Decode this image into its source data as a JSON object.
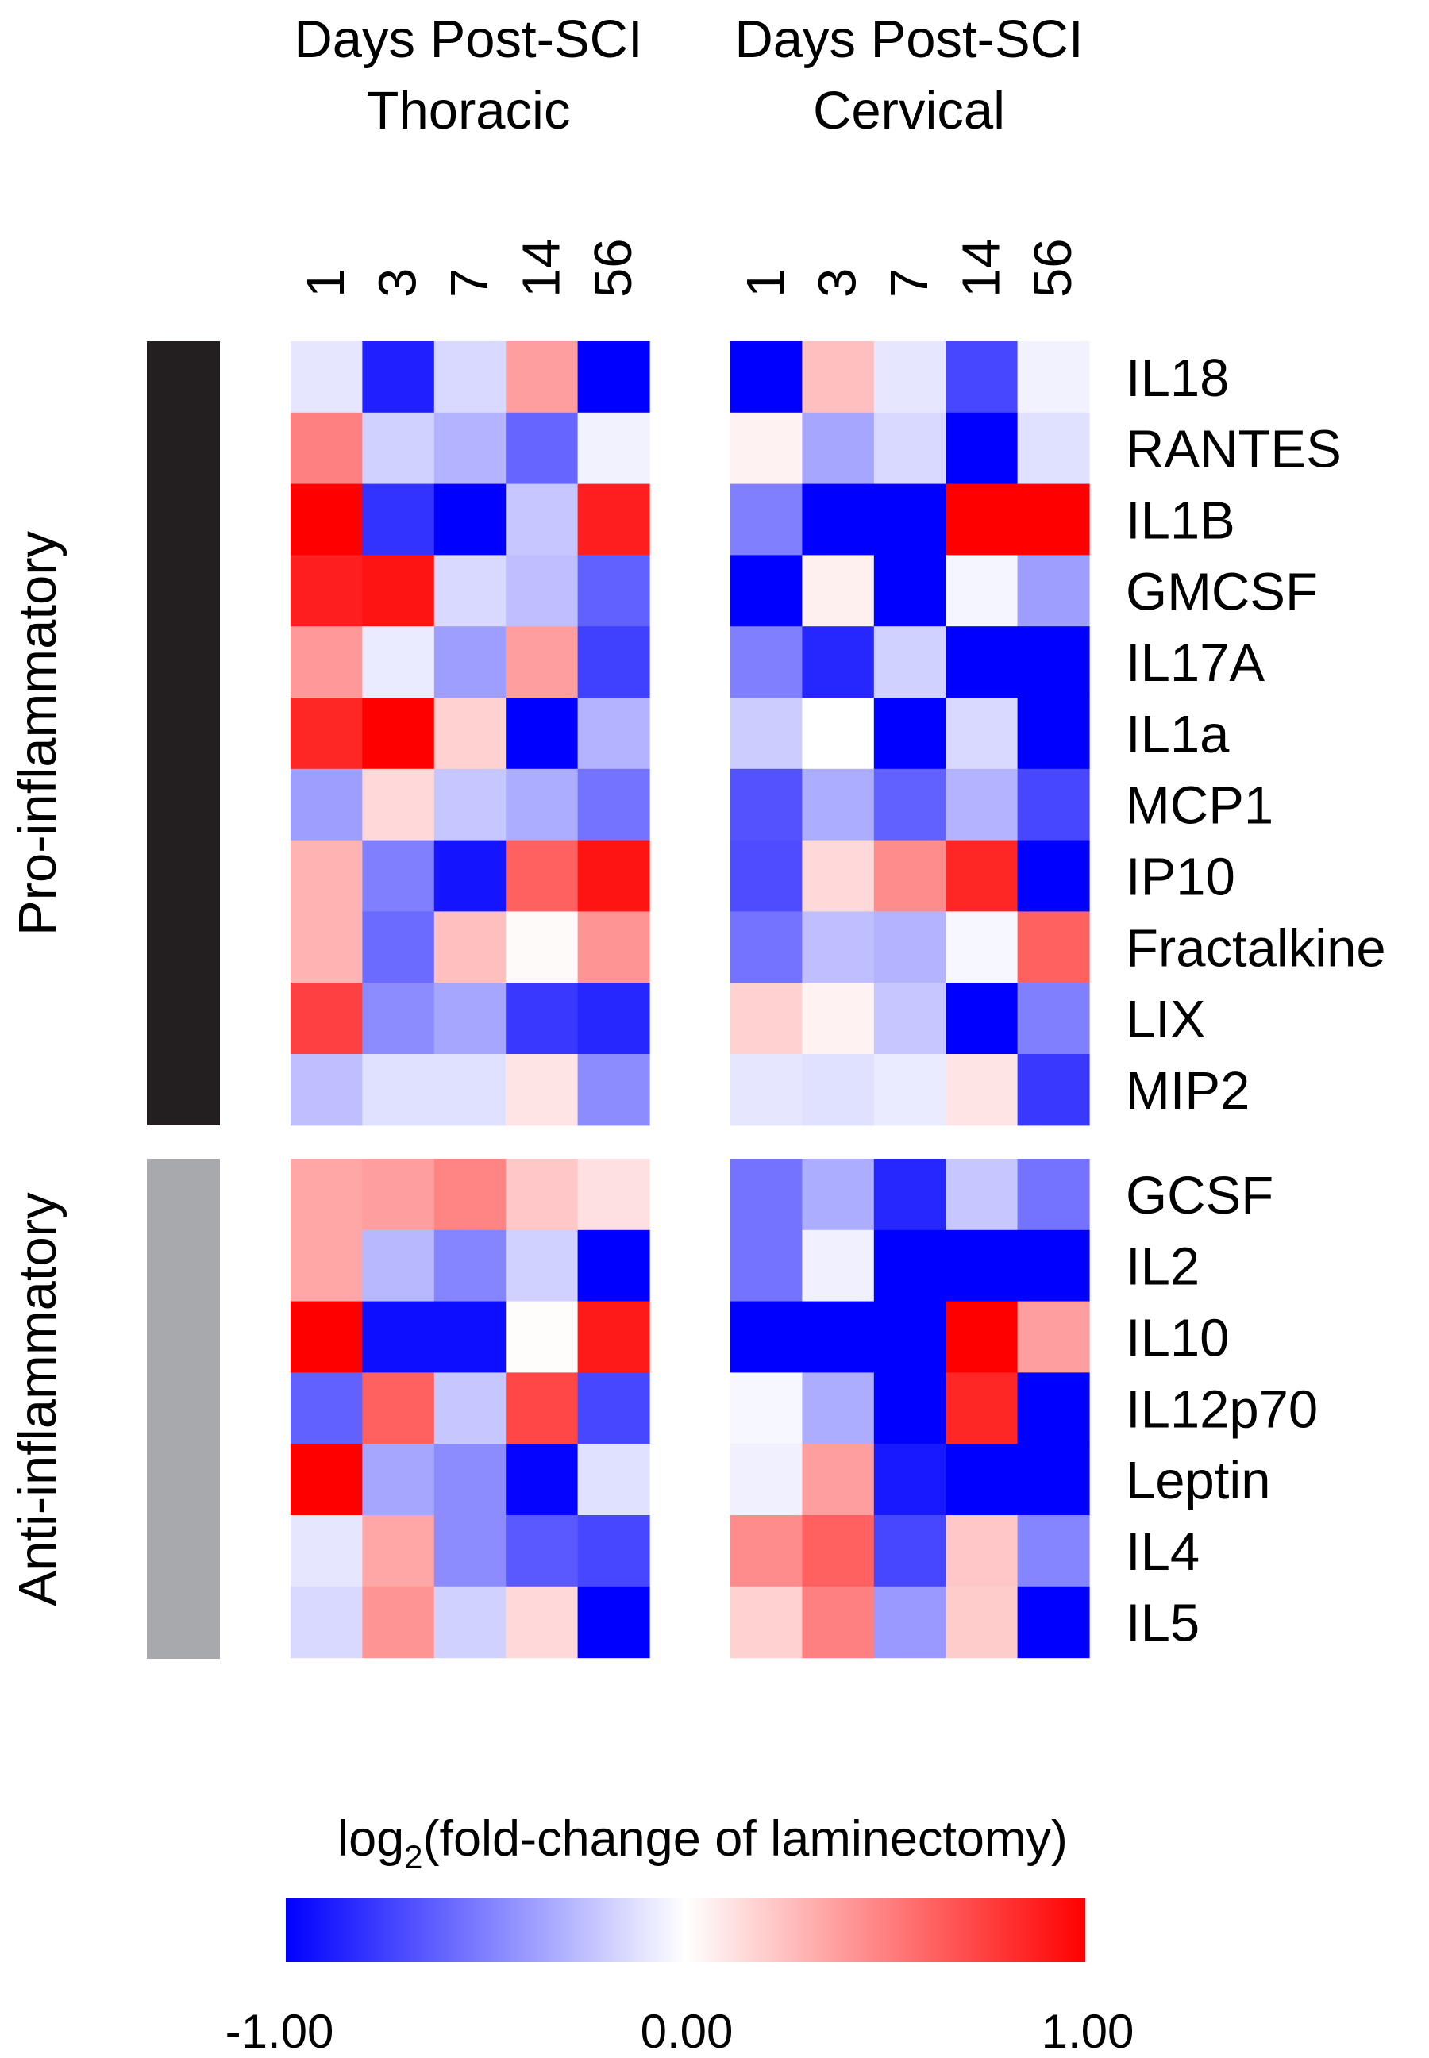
{
  "chart_data": {
    "type": "heatmap",
    "colorbar": {
      "title": "log",
      "title_subscript": "2",
      "title_rest": "(fold-change of laminectomy)",
      "min": -1.0,
      "max": 1.0,
      "ticks": [
        "-1.00",
        "0.00",
        "1.00"
      ],
      "colors": {
        "low": "#0000ff",
        "mid": "#ffffff",
        "high": "#ff0000"
      }
    },
    "columns": [
      "1",
      "3",
      "7",
      "14",
      "56"
    ],
    "groups": [
      {
        "label": "Pro-inflammatory",
        "color": "#231f20",
        "rows": [
          "IL18",
          "RANTES",
          "IL1B",
          "GMCSF",
          "IL17A",
          "IL1a",
          "MCP1",
          "IP10",
          "Fractalkine",
          "LIX",
          "MIP2"
        ]
      },
      {
        "label": "Anti-inflammatory",
        "color": "#a7a9ac",
        "rows": [
          "GCSF",
          "IL2",
          "IL10",
          "IL12p70",
          "Leptin",
          "IL4",
          "IL5"
        ]
      }
    ],
    "panels": [
      {
        "title_line1": "Days Post-SCI",
        "title_line2": "Thoracic",
        "values": [
          [
            -0.1,
            -0.88,
            -0.15,
            0.38,
            -1.0
          ],
          [
            0.5,
            -0.18,
            -0.3,
            -0.6,
            -0.05
          ],
          [
            1.0,
            -0.8,
            -1.0,
            -0.22,
            0.88
          ],
          [
            0.88,
            0.92,
            -0.15,
            -0.25,
            -0.62
          ],
          [
            0.4,
            -0.08,
            -0.38,
            0.38,
            -0.75
          ],
          [
            0.85,
            1.0,
            0.18,
            -1.0,
            -0.3
          ],
          [
            -0.38,
            0.15,
            -0.22,
            -0.32,
            -0.55
          ],
          [
            0.3,
            -0.5,
            -0.92,
            0.62,
            0.92
          ],
          [
            0.3,
            -0.58,
            0.25,
            0.02,
            0.42
          ],
          [
            0.75,
            -0.45,
            -0.35,
            -0.78,
            -0.85
          ],
          [
            -0.25,
            -0.12,
            -0.12,
            0.1,
            -0.45
          ]
        ],
        "values_anti": [
          [
            0.35,
            0.38,
            0.48,
            0.22,
            0.12
          ],
          [
            0.35,
            -0.28,
            -0.48,
            -0.18,
            -1.0
          ],
          [
            1.0,
            -0.95,
            -0.95,
            0.01,
            0.9
          ],
          [
            -0.62,
            0.62,
            -0.22,
            0.72,
            -0.72
          ],
          [
            1.0,
            -0.35,
            -0.45,
            -0.98,
            -0.12
          ],
          [
            -0.1,
            0.35,
            -0.45,
            -0.65,
            -0.72
          ],
          [
            -0.15,
            0.42,
            -0.18,
            0.15,
            -1.0
          ]
        ]
      },
      {
        "title_line1": "Days Post-SCI",
        "title_line2": "Cervical",
        "values": [
          [
            -1.0,
            0.25,
            -0.1,
            -0.72,
            -0.05
          ],
          [
            0.05,
            -0.35,
            -0.15,
            -1.0,
            -0.12
          ],
          [
            -0.5,
            -1.0,
            -1.0,
            1.0,
            1.0
          ],
          [
            -1.0,
            0.06,
            -1.0,
            -0.04,
            -0.38
          ],
          [
            -0.5,
            -0.85,
            -0.18,
            -1.0,
            -1.0
          ],
          [
            -0.2,
            0.0,
            -1.0,
            -0.15,
            -1.0
          ],
          [
            -0.68,
            -0.32,
            -0.62,
            -0.3,
            -0.72
          ],
          [
            -0.7,
            0.15,
            0.45,
            0.85,
            -1.0
          ],
          [
            -0.55,
            -0.25,
            -0.3,
            -0.03,
            0.62
          ],
          [
            0.18,
            0.05,
            -0.22,
            -1.0,
            -0.5
          ],
          [
            -0.1,
            -0.12,
            -0.08,
            0.1,
            -0.78
          ]
        ],
        "values_anti": [
          [
            -0.55,
            -0.32,
            -0.85,
            -0.22,
            -0.55
          ],
          [
            -0.55,
            -0.06,
            -1.0,
            -1.0,
            -1.0
          ],
          [
            -1.0,
            -1.0,
            -1.0,
            1.0,
            0.38
          ],
          [
            -0.03,
            -0.32,
            -1.0,
            0.85,
            -1.0
          ],
          [
            -0.06,
            0.38,
            -0.9,
            -1.0,
            -1.0
          ],
          [
            0.45,
            0.62,
            -0.72,
            0.22,
            -0.48
          ],
          [
            0.18,
            0.5,
            -0.4,
            0.2,
            -1.0
          ]
        ]
      }
    ]
  }
}
